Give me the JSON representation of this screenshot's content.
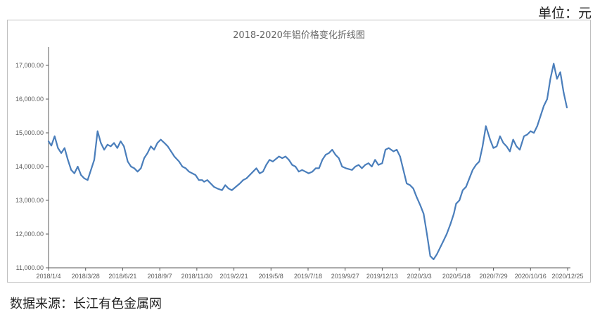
{
  "unit_label": "单位：元",
  "source_label": "数据来源：长江有色金属网",
  "colors": {
    "line": "#4a7ebb",
    "axis": "#595959",
    "frame": "#bfbfbf",
    "text": "#595959"
  },
  "chart_data": {
    "type": "line",
    "title": "2018-2020年铝价格变化折线图",
    "xlabel": "",
    "ylabel": "",
    "ylim": [
      11000,
      17500
    ],
    "xlim": [
      "2018-01-04",
      "2021-01-08"
    ],
    "grid": false,
    "legend": "none",
    "y_ticks": [
      11000,
      12000,
      13000,
      14000,
      15000,
      16000,
      17000
    ],
    "y_tick_labels": [
      "11,000.00",
      "12,000.00",
      "13,000.00",
      "14,000.00",
      "15,000.00",
      "16,000.00",
      "17,000.00"
    ],
    "x_tick_labels": [
      "2018/1/4",
      "2018/3/28",
      "2018/6/21",
      "2018/9/7",
      "2018/11/30",
      "2019/2/21",
      "2019/5/8",
      "2019/7/18",
      "2019/9/27",
      "2019/12/13",
      "2020/3/3",
      "2020/5/18",
      "2020/7/29",
      "2020/10/16",
      "2020/12/25"
    ],
    "series": [
      {
        "values": [
          [
            "2018-01-04",
            14750
          ],
          [
            "2018-01-10",
            14620
          ],
          [
            "2018-01-17",
            14900
          ],
          [
            "2018-01-24",
            14550
          ],
          [
            "2018-01-31",
            14400
          ],
          [
            "2018-02-07",
            14550
          ],
          [
            "2018-02-14",
            14200
          ],
          [
            "2018-02-21",
            13900
          ],
          [
            "2018-02-28",
            13800
          ],
          [
            "2018-03-07",
            14000
          ],
          [
            "2018-03-14",
            13750
          ],
          [
            "2018-03-21",
            13650
          ],
          [
            "2018-03-28",
            13600
          ],
          [
            "2018-04-04",
            13900
          ],
          [
            "2018-04-11",
            14200
          ],
          [
            "2018-04-18",
            15050
          ],
          [
            "2018-04-25",
            14700
          ],
          [
            "2018-05-02",
            14500
          ],
          [
            "2018-05-09",
            14650
          ],
          [
            "2018-05-16",
            14600
          ],
          [
            "2018-05-23",
            14700
          ],
          [
            "2018-05-30",
            14550
          ],
          [
            "2018-06-06",
            14750
          ],
          [
            "2018-06-13",
            14600
          ],
          [
            "2018-06-21",
            14150
          ],
          [
            "2018-06-28",
            14000
          ],
          [
            "2018-07-05",
            13950
          ],
          [
            "2018-07-12",
            13850
          ],
          [
            "2018-07-19",
            13950
          ],
          [
            "2018-07-26",
            14250
          ],
          [
            "2018-08-02",
            14400
          ],
          [
            "2018-08-09",
            14600
          ],
          [
            "2018-08-16",
            14500
          ],
          [
            "2018-08-23",
            14700
          ],
          [
            "2018-08-30",
            14800
          ],
          [
            "2018-09-07",
            14700
          ],
          [
            "2018-09-14",
            14600
          ],
          [
            "2018-09-21",
            14450
          ],
          [
            "2018-09-28",
            14300
          ],
          [
            "2018-10-08",
            14150
          ],
          [
            "2018-10-15",
            14000
          ],
          [
            "2018-10-22",
            13950
          ],
          [
            "2018-10-29",
            13850
          ],
          [
            "2018-11-05",
            13800
          ],
          [
            "2018-11-12",
            13750
          ],
          [
            "2018-11-19",
            13600
          ],
          [
            "2018-11-26",
            13600
          ],
          [
            "2018-11-30",
            13550
          ],
          [
            "2018-12-07",
            13600
          ],
          [
            "2018-12-14",
            13500
          ],
          [
            "2018-12-21",
            13400
          ],
          [
            "2018-12-28",
            13350
          ],
          [
            "2019-01-07",
            13300
          ],
          [
            "2019-01-14",
            13450
          ],
          [
            "2019-01-21",
            13350
          ],
          [
            "2019-01-28",
            13300
          ],
          [
            "2019-02-14",
            13500
          ],
          [
            "2019-02-21",
            13600
          ],
          [
            "2019-02-28",
            13650
          ],
          [
            "2019-03-07",
            13750
          ],
          [
            "2019-03-14",
            13850
          ],
          [
            "2019-03-21",
            13950
          ],
          [
            "2019-03-28",
            13800
          ],
          [
            "2019-04-04",
            13850
          ],
          [
            "2019-04-11",
            14050
          ],
          [
            "2019-04-18",
            14200
          ],
          [
            "2019-04-25",
            14150
          ],
          [
            "2019-05-08",
            14300
          ],
          [
            "2019-05-15",
            14250
          ],
          [
            "2019-05-22",
            14300
          ],
          [
            "2019-05-29",
            14200
          ],
          [
            "2019-06-05",
            14050
          ],
          [
            "2019-06-12",
            14000
          ],
          [
            "2019-06-19",
            13850
          ],
          [
            "2019-06-26",
            13900
          ],
          [
            "2019-07-03",
            13850
          ],
          [
            "2019-07-10",
            13800
          ],
          [
            "2019-07-18",
            13850
          ],
          [
            "2019-07-25",
            13950
          ],
          [
            "2019-08-01",
            13950
          ],
          [
            "2019-08-08",
            14200
          ],
          [
            "2019-08-15",
            14350
          ],
          [
            "2019-08-22",
            14400
          ],
          [
            "2019-08-29",
            14500
          ],
          [
            "2019-09-05",
            14350
          ],
          [
            "2019-09-12",
            14250
          ],
          [
            "2019-09-19",
            14000
          ],
          [
            "2019-09-27",
            13950
          ],
          [
            "2019-10-10",
            13900
          ],
          [
            "2019-10-17",
            14000
          ],
          [
            "2019-10-24",
            14050
          ],
          [
            "2019-10-31",
            13950
          ],
          [
            "2019-11-07",
            14050
          ],
          [
            "2019-11-14",
            14100
          ],
          [
            "2019-11-21",
            14000
          ],
          [
            "2019-11-28",
            14200
          ],
          [
            "2019-12-05",
            14050
          ],
          [
            "2019-12-13",
            14100
          ],
          [
            "2019-12-20",
            14500
          ],
          [
            "2019-12-27",
            14550
          ],
          [
            "2020-01-06",
            14450
          ],
          [
            "2020-01-13",
            14500
          ],
          [
            "2020-01-20",
            14300
          ],
          [
            "2020-02-03",
            13500
          ],
          [
            "2020-02-10",
            13450
          ],
          [
            "2020-02-17",
            13350
          ],
          [
            "2020-02-24",
            13100
          ],
          [
            "2020-03-03",
            12850
          ],
          [
            "2020-03-10",
            12600
          ],
          [
            "2020-03-17",
            12000
          ],
          [
            "2020-03-24",
            11350
          ],
          [
            "2020-03-31",
            11250
          ],
          [
            "2020-04-07",
            11400
          ],
          [
            "2020-04-14",
            11600
          ],
          [
            "2020-04-21",
            11800
          ],
          [
            "2020-04-28",
            12000
          ],
          [
            "2020-05-06",
            12300
          ],
          [
            "2020-05-13",
            12600
          ],
          [
            "2020-05-18",
            12900
          ],
          [
            "2020-05-25",
            13000
          ],
          [
            "2020-06-01",
            13300
          ],
          [
            "2020-06-08",
            13400
          ],
          [
            "2020-06-15",
            13650
          ],
          [
            "2020-06-22",
            13900
          ],
          [
            "2020-06-29",
            14050
          ],
          [
            "2020-07-06",
            14150
          ],
          [
            "2020-07-13",
            14600
          ],
          [
            "2020-07-20",
            15200
          ],
          [
            "2020-07-29",
            14800
          ],
          [
            "2020-08-05",
            14550
          ],
          [
            "2020-08-12",
            14600
          ],
          [
            "2020-08-19",
            14900
          ],
          [
            "2020-08-26",
            14700
          ],
          [
            "2020-09-02",
            14600
          ],
          [
            "2020-09-09",
            14450
          ],
          [
            "2020-09-16",
            14800
          ],
          [
            "2020-09-23",
            14600
          ],
          [
            "2020-09-30",
            14500
          ],
          [
            "2020-10-09",
            14900
          ],
          [
            "2020-10-16",
            14950
          ],
          [
            "2020-10-23",
            15050
          ],
          [
            "2020-10-30",
            15000
          ],
          [
            "2020-11-06",
            15200
          ],
          [
            "2020-11-13",
            15500
          ],
          [
            "2020-11-20",
            15800
          ],
          [
            "2020-11-27",
            16000
          ],
          [
            "2020-12-04",
            16600
          ],
          [
            "2020-12-11",
            17050
          ],
          [
            "2020-12-18",
            16600
          ],
          [
            "2020-12-25",
            16800
          ],
          [
            "2021-01-01",
            16200
          ],
          [
            "2021-01-08",
            15750
          ]
        ]
      }
    ]
  }
}
